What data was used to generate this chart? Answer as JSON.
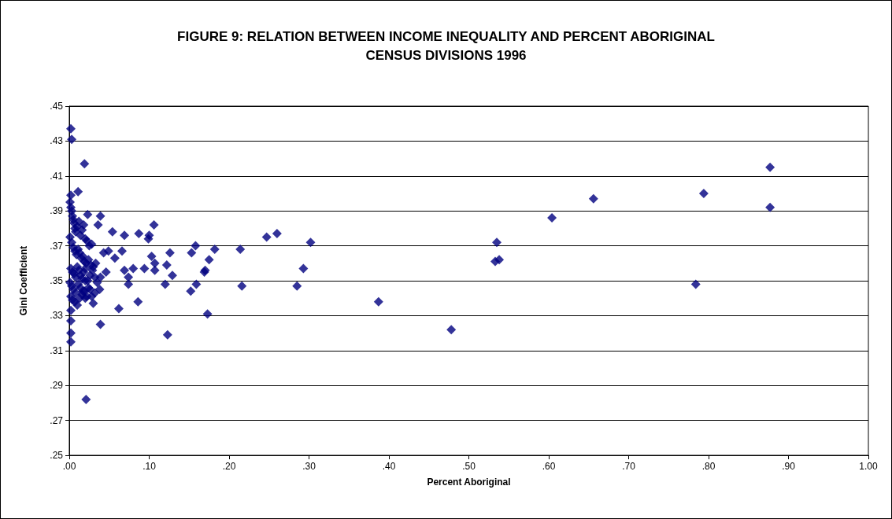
{
  "chart_data": {
    "type": "scatter",
    "title": "FIGURE 9: RELATION BETWEEN INCOME INEQUALITY AND PERCENT ABORIGINAL\nCENSUS DIVISIONS 1996",
    "xlabel": "Percent Aboriginal",
    "ylabel": "Gini Coefficient",
    "marker": "diamond",
    "grid": "y",
    "xlim": [
      0,
      1
    ],
    "xticks": [
      {
        "value": 0,
        "label": ".00"
      },
      {
        "value": 0.1,
        "label": ".10"
      },
      {
        "value": 0.2,
        "label": ".20"
      },
      {
        "value": 0.3,
        "label": ".30"
      },
      {
        "value": 0.4,
        "label": ".40"
      },
      {
        "value": 0.5,
        "label": ".50"
      },
      {
        "value": 0.6,
        "label": ".60"
      },
      {
        "value": 0.7,
        "label": ".70"
      },
      {
        "value": 0.8,
        "label": ".80"
      },
      {
        "value": 0.9,
        "label": ".90"
      },
      {
        "value": 1,
        "label": "1.00"
      }
    ],
    "ylim": [
      0.25,
      0.45
    ],
    "yticks": [
      {
        "value": 0.25,
        "label": ".25"
      },
      {
        "value": 0.27,
        "label": ".27"
      },
      {
        "value": 0.29,
        "label": ".29"
      },
      {
        "value": 0.31,
        "label": ".31"
      },
      {
        "value": 0.33,
        "label": ".33"
      },
      {
        "value": 0.35,
        "label": ".35"
      },
      {
        "value": 0.37,
        "label": ".37"
      },
      {
        "value": 0.39,
        "label": ".39"
      },
      {
        "value": 0.41,
        "label": ".41"
      },
      {
        "value": 0.43,
        "label": ".43"
      },
      {
        "value": 0.45,
        "label": ".45"
      }
    ],
    "series": [
      {
        "color": "#000080",
        "x": [
          0.877,
          0.877,
          0.794,
          0.784,
          0.656,
          0.604,
          0.535,
          0.533,
          0.538,
          0.478,
          0.387,
          0.106,
          0.1,
          0.099,
          0.103,
          0.107,
          0.094,
          0.107,
          0.126,
          0.122,
          0.129,
          0.12,
          0.158,
          0.153,
          0.182,
          0.175,
          0.17,
          0.169,
          0.159,
          0.152,
          0.173,
          0.123,
          0.214,
          0.216,
          0.247,
          0.26,
          0.302,
          0.293,
          0.285,
          0.002,
          0.003,
          0.019,
          0.011,
          0.002,
          0.023,
          0.039,
          0.036,
          0.087,
          0.054,
          0.069,
          0.049,
          0.066,
          0.057,
          0.043,
          0.046,
          0.039,
          0.038,
          0.03,
          0.02,
          0.062,
          0.086,
          0.039,
          0.021,
          0.002,
          0.002,
          0.002,
          0.002,
          0.08,
          0.069,
          0.074,
          0.074,
          0.001,
          0.002,
          0.003,
          0.004,
          0.005,
          0.006,
          0.007,
          0.008,
          0.01,
          0.012,
          0.014,
          0.016,
          0.018,
          0.02,
          0.022,
          0.025,
          0.028,
          0.001,
          0.003,
          0.005,
          0.007,
          0.009,
          0.011,
          0.013,
          0.015,
          0.017,
          0.019,
          0.021,
          0.024,
          0.027,
          0.03,
          0.033,
          0.002,
          0.004,
          0.006,
          0.008,
          0.01,
          0.012,
          0.014,
          0.016,
          0.018,
          0.02,
          0.023,
          0.026,
          0.029,
          0.032,
          0.035,
          0.001,
          0.003,
          0.005,
          0.008,
          0.011,
          0.014,
          0.017,
          0.02,
          0.024,
          0.028,
          0.032,
          0.002,
          0.004,
          0.007,
          0.01,
          0.013,
          0.016,
          0.019,
          0.022,
          0.026
        ],
        "values": [
          0.415,
          0.392,
          0.4,
          0.348,
          0.397,
          0.386,
          0.372,
          0.361,
          0.362,
          0.322,
          0.338,
          0.382,
          0.376,
          0.374,
          0.364,
          0.36,
          0.357,
          0.356,
          0.366,
          0.359,
          0.353,
          0.348,
          0.37,
          0.366,
          0.368,
          0.362,
          0.356,
          0.355,
          0.348,
          0.344,
          0.331,
          0.319,
          0.368,
          0.347,
          0.375,
          0.377,
          0.372,
          0.357,
          0.347,
          0.437,
          0.431,
          0.417,
          0.401,
          0.399,
          0.388,
          0.387,
          0.382,
          0.377,
          0.378,
          0.376,
          0.367,
          0.367,
          0.363,
          0.366,
          0.355,
          0.352,
          0.345,
          0.337,
          0.34,
          0.334,
          0.338,
          0.325,
          0.282,
          0.32,
          0.315,
          0.327,
          0.333,
          0.357,
          0.356,
          0.352,
          0.348,
          0.395,
          0.392,
          0.39,
          0.387,
          0.385,
          0.383,
          0.38,
          0.378,
          0.381,
          0.384,
          0.376,
          0.379,
          0.382,
          0.374,
          0.373,
          0.37,
          0.371,
          0.375,
          0.372,
          0.369,
          0.367,
          0.365,
          0.368,
          0.366,
          0.363,
          0.364,
          0.361,
          0.36,
          0.362,
          0.359,
          0.358,
          0.36,
          0.357,
          0.355,
          0.354,
          0.352,
          0.358,
          0.356,
          0.353,
          0.351,
          0.355,
          0.357,
          0.35,
          0.353,
          0.356,
          0.352,
          0.349,
          0.349,
          0.347,
          0.345,
          0.343,
          0.348,
          0.346,
          0.344,
          0.35,
          0.346,
          0.341,
          0.343,
          0.341,
          0.339,
          0.338,
          0.336,
          0.34,
          0.342,
          0.344,
          0.341,
          0.345
        ]
      }
    ]
  }
}
